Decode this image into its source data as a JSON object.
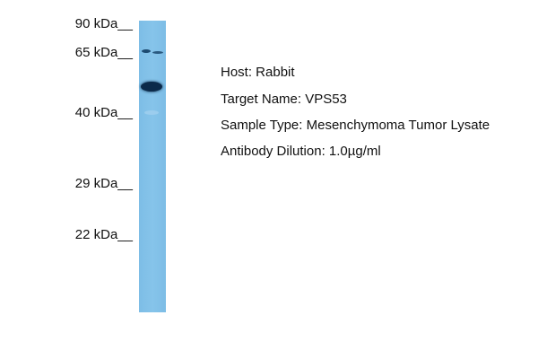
{
  "markers": [
    "90 kDa__",
    "65 kDa__",
    "40 kDa__",
    "29 kDa__",
    "22 kDa__"
  ],
  "info": {
    "host": "Host: Rabbit",
    "target": "Target Name: VPS53",
    "sample": "Sample Type: Mesenchymoma Tumor Lysate",
    "dilution": "Antibody Dilution: 1.0µg/ml"
  },
  "colors": {
    "lane": "#7dbde6",
    "band": "#0b2a4a"
  }
}
